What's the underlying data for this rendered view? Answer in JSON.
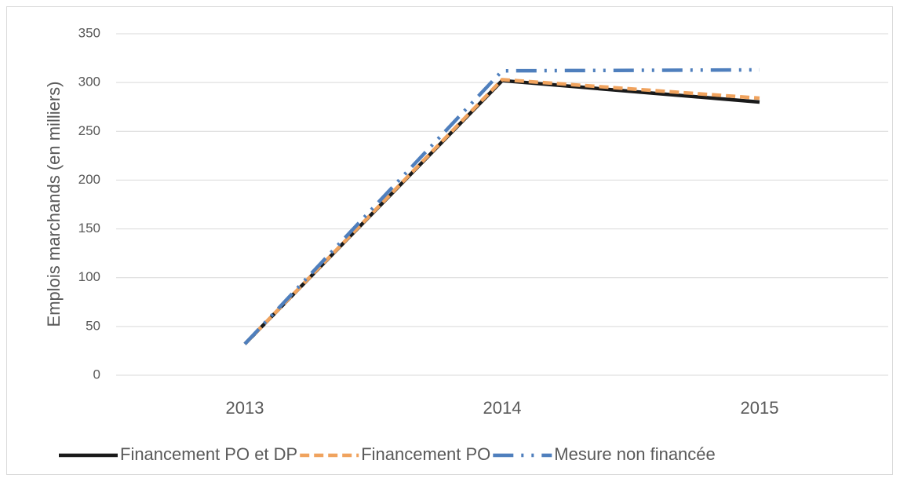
{
  "chart_data": {
    "type": "line",
    "y_axis_label": "Emplois marchands (en milliers)",
    "categories": [
      "2013",
      "2014",
      "2015"
    ],
    "series": [
      {
        "name": "Financement PO et DP",
        "color": "#1a1a1a",
        "values": [
          32,
          302,
          280
        ]
      },
      {
        "name": "Financement PO",
        "color": "#f0a35e",
        "values": [
          32,
          303,
          284
        ]
      },
      {
        "name": "Mesure non financée",
        "color": "#4f7fbd",
        "values": [
          32,
          312,
          313
        ]
      }
    ],
    "ylim": [
      0,
      350
    ],
    "yticks": [
      0,
      50,
      100,
      150,
      200,
      250,
      300,
      350
    ],
    "grid": true,
    "legend": "bottom"
  }
}
